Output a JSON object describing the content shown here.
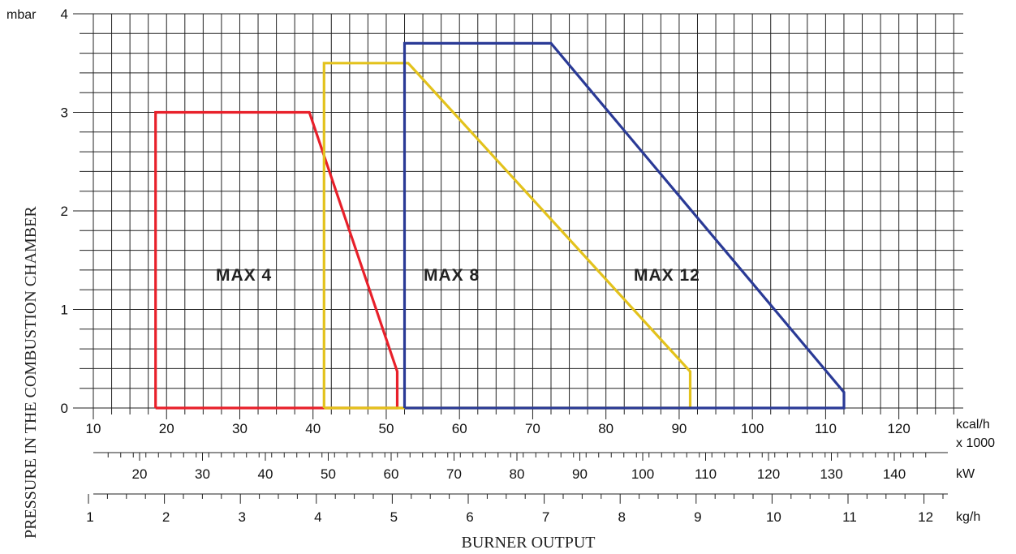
{
  "chart_data": {
    "type": "area",
    "title": "",
    "xlabel": "BURNER OUTPUT",
    "ylabel": "PRESSURE IN THE COMBUSTION CHAMBER",
    "y_unit": "mbar",
    "ylim": [
      0,
      4
    ],
    "y_ticks": [
      "0",
      "1",
      "2",
      "3",
      "4"
    ],
    "grid": true,
    "x_axes": [
      {
        "unit": "kcal/h",
        "unit_line2": "x 1000",
        "xlim": [
          10,
          125
        ],
        "ticks": [
          "10",
          "20",
          "30",
          "40",
          "50",
          "60",
          "70",
          "80",
          "90",
          "100",
          "110",
          "120"
        ]
      },
      {
        "unit": "kW",
        "ticks": [
          "20",
          "30",
          "40",
          "50",
          "60",
          "70",
          "80",
          "90",
          "100",
          "110",
          "120",
          "130",
          "140"
        ]
      },
      {
        "unit": "kg/h",
        "ticks": [
          "1",
          "2",
          "3",
          "4",
          "5",
          "6",
          "7",
          "8",
          "9",
          "10",
          "11",
          "12"
        ]
      }
    ],
    "series": [
      {
        "name": "MAX 4",
        "color": "#e8202a",
        "x": [
          18.5,
          18.5,
          39.5,
          51.5,
          51.5,
          18.5
        ],
        "y": [
          0,
          3.0,
          3.0,
          0.37,
          0,
          0
        ]
      },
      {
        "name": "MAX 8",
        "color": "#e3c21c",
        "x": [
          41.5,
          41.5,
          53,
          91.5,
          91.5,
          41.5
        ],
        "y": [
          0,
          3.5,
          3.5,
          0.37,
          0,
          0
        ]
      },
      {
        "name": "MAX 12",
        "color": "#2a3a96",
        "x": [
          52.5,
          52.5,
          72.5,
          112.5,
          112.5,
          52.5
        ],
        "y": [
          0,
          3.7,
          3.7,
          0.16,
          0,
          0
        ]
      }
    ]
  },
  "labels": {
    "max4": "MAX 4",
    "max8": "MAX 8",
    "max12": "MAX 12"
  }
}
